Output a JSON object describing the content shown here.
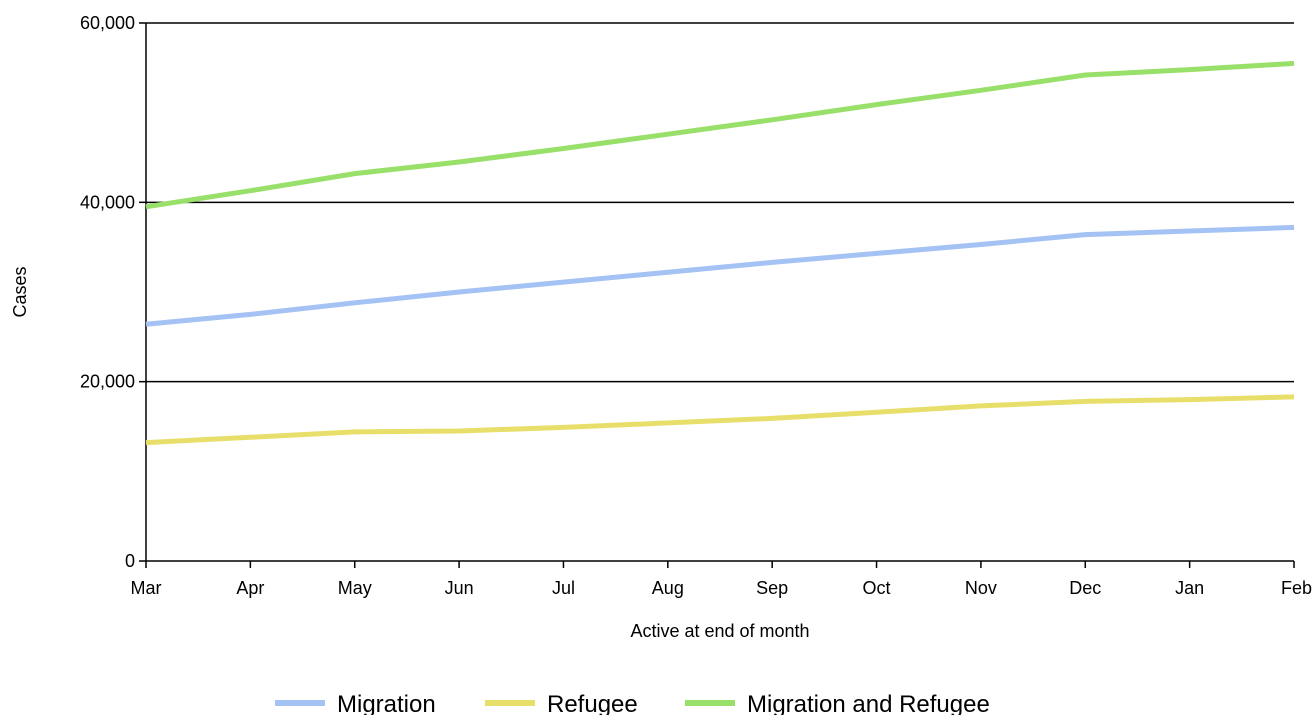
{
  "chart_data": {
    "type": "line",
    "title": "",
    "xlabel": "Active at end of month",
    "ylabel": "Cases",
    "categories": [
      "Mar",
      "Apr",
      "May",
      "Jun",
      "Jul",
      "Aug",
      "Sep",
      "Oct",
      "Nov",
      "Dec",
      "Jan",
      "Feb"
    ],
    "ylim": [
      0,
      60000
    ],
    "yticks": [
      0,
      20000,
      40000,
      60000
    ],
    "ytick_labels": [
      "0",
      "20,000",
      "40,000",
      "60,000"
    ],
    "grid": "horizontal",
    "legend_position": "bottom",
    "series": [
      {
        "name": "Migration",
        "color": "#a4c2f4",
        "values": [
          26400,
          27500,
          28800,
          30000,
          31100,
          32200,
          33300,
          34300,
          35300,
          36400,
          36800,
          37200
        ]
      },
      {
        "name": "Refugee",
        "color": "#e8df6b",
        "values": [
          13200,
          13800,
          14400,
          14500,
          14900,
          15400,
          15900,
          16600,
          17300,
          17800,
          18000,
          18300
        ]
      },
      {
        "name": "Migration and Refugee",
        "color": "#98e06a",
        "values": [
          39500,
          41300,
          43200,
          44500,
          46000,
          47600,
          49200,
          50900,
          52500,
          54200,
          54800,
          55500
        ]
      }
    ]
  }
}
